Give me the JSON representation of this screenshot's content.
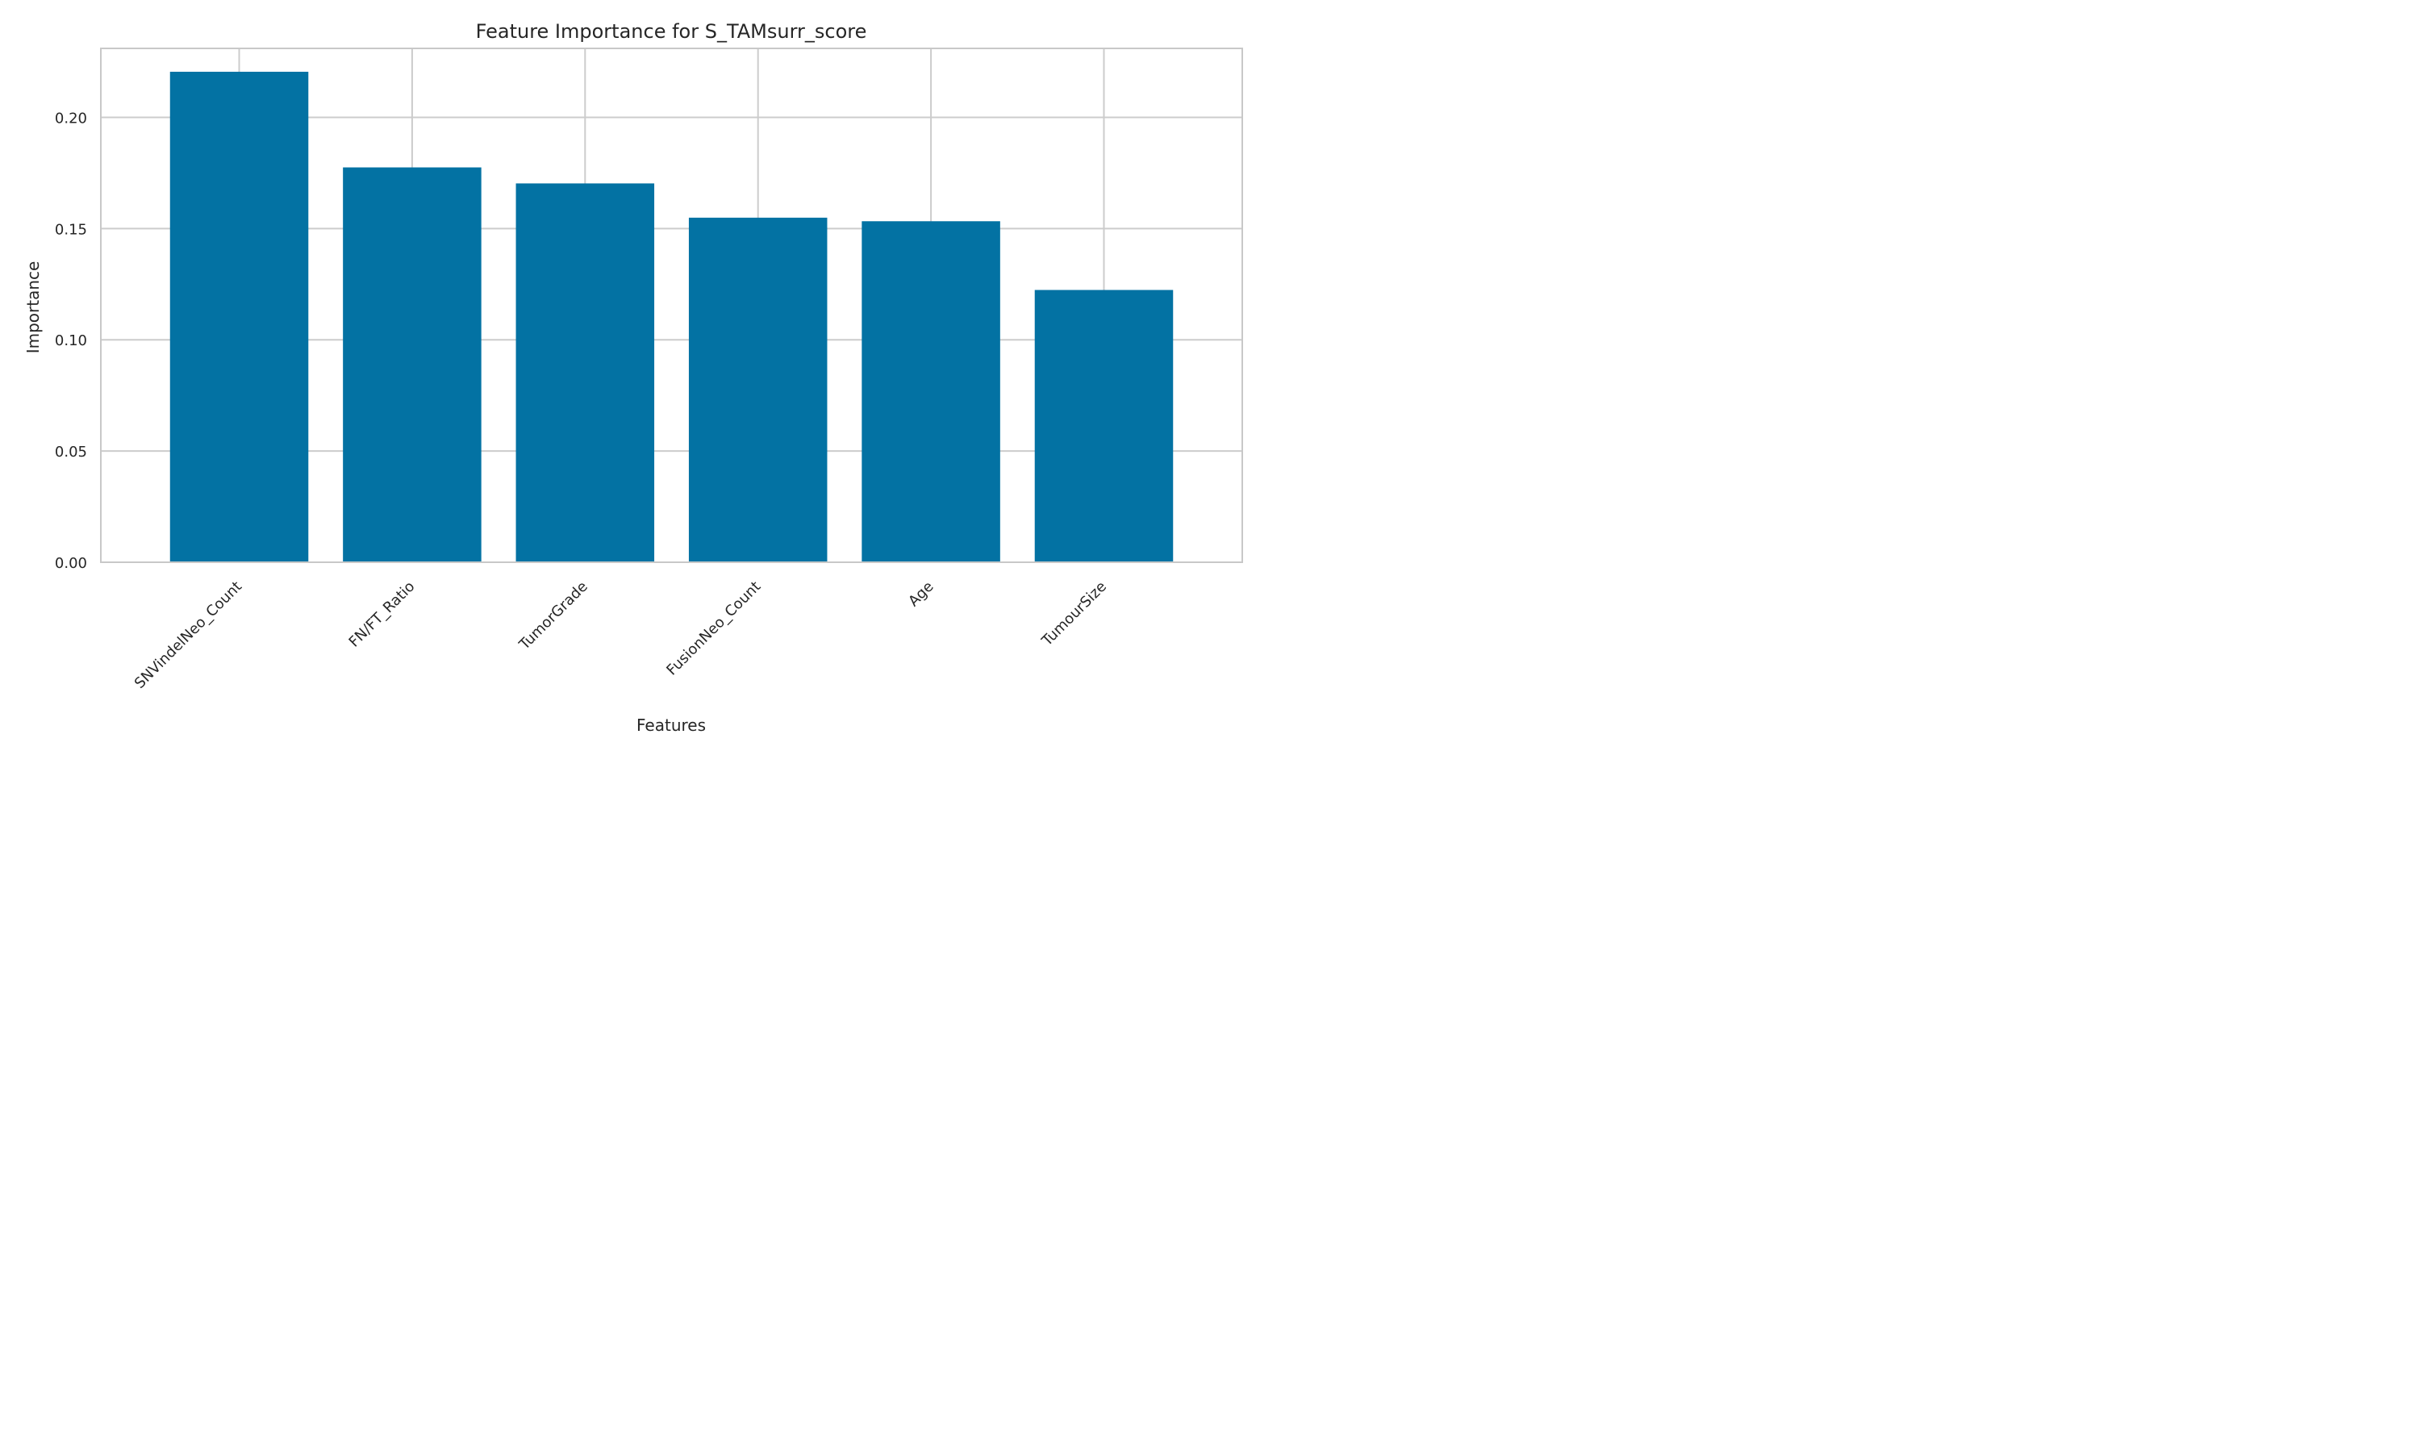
{
  "chart_data": {
    "type": "bar",
    "title": "Feature Importance for S_TAMsurr_score",
    "xlabel": "Features",
    "ylabel": "Importance",
    "categories": [
      "SNVindelNeo_Count",
      "FN/FT_Ratio",
      "TumorGrade",
      "FusionNeo_Count",
      "Age",
      "TumourSize"
    ],
    "values": [
      0.2205,
      0.1775,
      0.1703,
      0.1549,
      0.1533,
      0.1224
    ],
    "ylim": [
      0,
      0.231
    ],
    "yticks": [
      0.0,
      0.05,
      0.1,
      0.15,
      0.2
    ],
    "ytick_labels": [
      "0.00",
      "0.05",
      "0.10",
      "0.15",
      "0.20"
    ],
    "grid": true,
    "colors": {
      "bar": "#0372a3",
      "grid": "#cccccc",
      "spine": "#c8c8c8",
      "text": "#262626"
    }
  }
}
